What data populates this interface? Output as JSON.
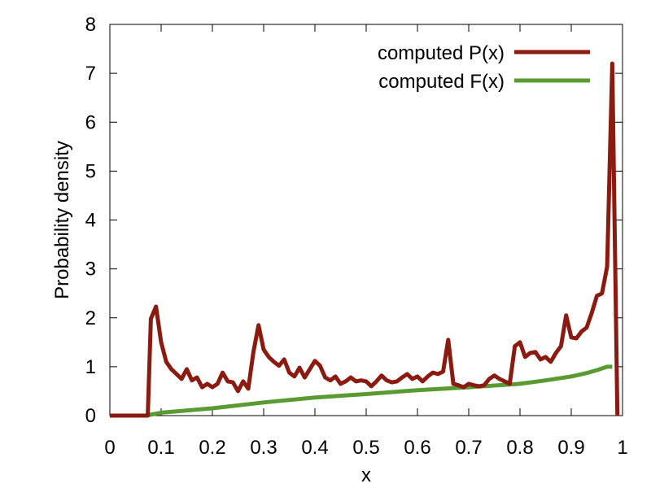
{
  "chart_data": {
    "type": "line",
    "title": "",
    "xlabel": "x",
    "ylabel": "Probability density",
    "xlim": [
      0,
      1
    ],
    "ylim": [
      0,
      8
    ],
    "x_ticks": [
      "0",
      "0.1",
      "0.2",
      "0.3",
      "0.4",
      "0.5",
      "0.6",
      "0.7",
      "0.8",
      "0.9",
      "1"
    ],
    "y_ticks": [
      "0",
      "1",
      "2",
      "3",
      "4",
      "5",
      "6",
      "7",
      "8"
    ],
    "grid": false,
    "legend_position": "top-right",
    "series": [
      {
        "name": "computed P(x)",
        "color": "#8b1a10",
        "x": [
          0,
          0.07,
          0.074,
          0.08,
          0.09,
          0.1,
          0.11,
          0.12,
          0.13,
          0.14,
          0.15,
          0.16,
          0.17,
          0.18,
          0.19,
          0.2,
          0.21,
          0.22,
          0.23,
          0.24,
          0.25,
          0.26,
          0.27,
          0.28,
          0.29,
          0.3,
          0.31,
          0.32,
          0.33,
          0.34,
          0.35,
          0.36,
          0.37,
          0.38,
          0.39,
          0.4,
          0.41,
          0.42,
          0.43,
          0.44,
          0.45,
          0.46,
          0.47,
          0.48,
          0.49,
          0.5,
          0.51,
          0.52,
          0.53,
          0.54,
          0.55,
          0.56,
          0.57,
          0.58,
          0.59,
          0.6,
          0.61,
          0.62,
          0.63,
          0.64,
          0.65,
          0.66,
          0.67,
          0.68,
          0.69,
          0.7,
          0.71,
          0.72,
          0.73,
          0.74,
          0.75,
          0.76,
          0.77,
          0.78,
          0.79,
          0.8,
          0.81,
          0.82,
          0.83,
          0.84,
          0.85,
          0.86,
          0.87,
          0.88,
          0.89,
          0.9,
          0.91,
          0.92,
          0.93,
          0.94,
          0.95,
          0.96,
          0.97,
          0.98,
          0.99
        ],
        "y": [
          0,
          0,
          0,
          1.98,
          2.23,
          1.5,
          1.1,
          0.95,
          0.85,
          0.75,
          0.95,
          0.72,
          0.78,
          0.58,
          0.65,
          0.58,
          0.65,
          0.88,
          0.7,
          0.68,
          0.5,
          0.7,
          0.55,
          1.3,
          1.85,
          1.35,
          1.2,
          1.1,
          1.02,
          1.15,
          0.88,
          0.8,
          0.98,
          0.78,
          0.95,
          1.12,
          1.02,
          0.78,
          0.72,
          0.8,
          0.65,
          0.7,
          0.78,
          0.7,
          0.72,
          0.7,
          0.6,
          0.7,
          0.82,
          0.72,
          0.68,
          0.7,
          0.78,
          0.85,
          0.75,
          0.8,
          0.7,
          0.8,
          0.88,
          0.85,
          0.9,
          1.55,
          0.65,
          0.62,
          0.58,
          0.65,
          0.62,
          0.6,
          0.62,
          0.75,
          0.82,
          0.75,
          0.7,
          0.65,
          1.42,
          1.5,
          1.2,
          1.28,
          1.3,
          1.15,
          1.2,
          1.1,
          1.28,
          1.42,
          2.05,
          1.6,
          1.58,
          1.72,
          1.8,
          2.1,
          2.45,
          2.5,
          3.05,
          7.2,
          0
        ]
      },
      {
        "name": "computed F(x)",
        "color": "#5a9a32",
        "x": [
          0,
          0.07,
          0.1,
          0.2,
          0.3,
          0.4,
          0.5,
          0.6,
          0.7,
          0.8,
          0.85,
          0.9,
          0.93,
          0.95,
          0.97,
          0.98
        ],
        "y": [
          0,
          0,
          0.06,
          0.15,
          0.27,
          0.37,
          0.44,
          0.52,
          0.58,
          0.65,
          0.72,
          0.8,
          0.87,
          0.93,
          1.0,
          1.0
        ]
      }
    ]
  }
}
